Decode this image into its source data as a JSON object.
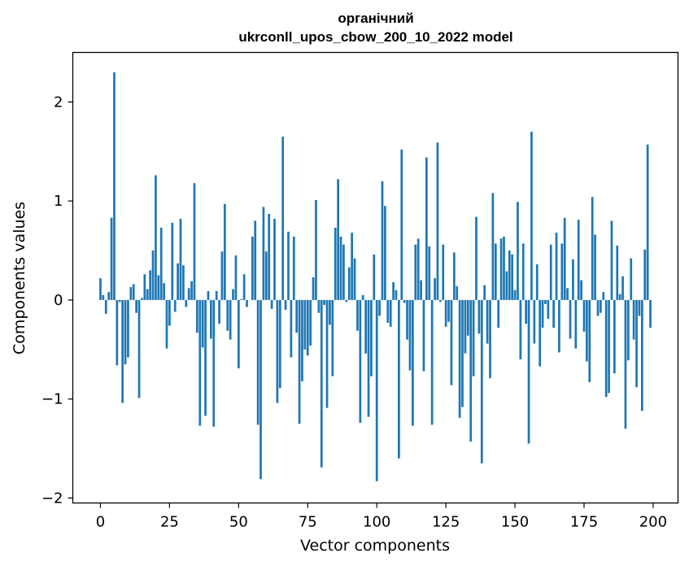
{
  "chart_data": {
    "type": "bar",
    "title_line1": "органічний",
    "title_line2": "ukrconll_upos_cbow_200_10_2022 model",
    "xlabel": "Vector components",
    "ylabel": "Components values",
    "xlim": [
      -10,
      209
    ],
    "ylim": [
      -2.05,
      2.5
    ],
    "xticks": [
      0,
      25,
      50,
      75,
      100,
      125,
      150,
      175,
      200
    ],
    "yticks": [
      -2,
      -1,
      0,
      1,
      2
    ],
    "ytick_labels": [
      "−2",
      "−1",
      "0",
      "1",
      "2"
    ],
    "grid": false,
    "bar_color": "#1f77b4",
    "x": [
      0,
      1,
      2,
      3,
      4,
      5,
      6,
      7,
      8,
      9,
      10,
      11,
      12,
      13,
      14,
      15,
      16,
      17,
      18,
      19,
      20,
      21,
      22,
      23,
      24,
      25,
      26,
      27,
      28,
      29,
      30,
      31,
      32,
      33,
      34,
      35,
      36,
      37,
      38,
      39,
      40,
      41,
      42,
      43,
      44,
      45,
      46,
      47,
      48,
      49,
      50,
      51,
      52,
      53,
      54,
      55,
      56,
      57,
      58,
      59,
      60,
      61,
      62,
      63,
      64,
      65,
      66,
      67,
      68,
      69,
      70,
      71,
      72,
      73,
      74,
      75,
      76,
      77,
      78,
      79,
      80,
      81,
      82,
      83,
      84,
      85,
      86,
      87,
      88,
      89,
      90,
      91,
      92,
      93,
      94,
      95,
      96,
      97,
      98,
      99,
      100,
      101,
      102,
      103,
      104,
      105,
      106,
      107,
      108,
      109,
      110,
      111,
      112,
      113,
      114,
      115,
      116,
      117,
      118,
      119,
      120,
      121,
      122,
      123,
      124,
      125,
      126,
      127,
      128,
      129,
      130,
      131,
      132,
      133,
      134,
      135,
      136,
      137,
      138,
      139,
      140,
      141,
      142,
      143,
      144,
      145,
      146,
      147,
      148,
      149,
      150,
      151,
      152,
      153,
      154,
      155,
      156,
      157,
      158,
      159,
      160,
      161,
      162,
      163,
      164,
      165,
      166,
      167,
      168,
      169,
      170,
      171,
      172,
      173,
      174,
      175,
      176,
      177,
      178,
      179,
      180,
      181,
      182,
      183,
      184,
      185,
      186,
      187,
      188,
      189,
      190,
      191,
      192,
      193,
      194,
      195,
      196,
      197,
      198,
      199
    ],
    "values": [
      0.22,
      0.05,
      -0.14,
      0.08,
      0.83,
      2.3,
      -0.66,
      -0.02,
      -1.04,
      -0.65,
      -0.58,
      0.13,
      0.16,
      -0.13,
      -0.99,
      0.02,
      0.26,
      0.11,
      0.3,
      0.5,
      1.26,
      0.25,
      0.73,
      0.17,
      -0.49,
      -0.26,
      0.78,
      -0.12,
      0.37,
      0.82,
      0.35,
      -0.07,
      0.12,
      0.19,
      1.18,
      -0.33,
      -1.27,
      -0.48,
      -1.17,
      0.09,
      -0.39,
      -1.28,
      0.09,
      -0.24,
      0.49,
      0.97,
      -0.31,
      -0.4,
      0.11,
      0.45,
      -0.69,
      0.01,
      0.26,
      -0.07,
      0.0,
      0.64,
      0.8,
      -1.26,
      -1.81,
      0.94,
      0.49,
      0.87,
      -0.09,
      0.82,
      -1.04,
      -0.89,
      1.65,
      -0.1,
      0.69,
      -0.58,
      0.64,
      -0.33,
      -1.25,
      -0.82,
      -0.5,
      -0.56,
      -0.46,
      0.23,
      1.01,
      -0.13,
      -1.69,
      -0.05,
      -1.09,
      -0.25,
      -0.77,
      0.73,
      1.22,
      0.64,
      0.56,
      -0.02,
      0.33,
      0.68,
      0.42,
      -0.31,
      -1.24,
      0.05,
      -0.54,
      -1.18,
      -0.77,
      0.46,
      -1.83,
      -0.16,
      1.2,
      0.95,
      -0.23,
      -0.27,
      0.18,
      0.1,
      -1.6,
      1.52,
      -0.03,
      -0.4,
      -0.71,
      -1.27,
      0.56,
      0.62,
      0.2,
      -0.72,
      1.44,
      0.54,
      -1.26,
      0.22,
      1.59,
      -0.02,
      0.56,
      -0.27,
      -0.22,
      -0.86,
      0.48,
      0.14,
      -1.19,
      -1.08,
      -0.54,
      -0.36,
      -1.43,
      -0.77,
      0.84,
      -0.34,
      -1.65,
      0.15,
      -0.44,
      -0.79,
      1.08,
      0.57,
      -0.28,
      0.62,
      0.64,
      0.29,
      0.5,
      0.46,
      0.1,
      0.99,
      -0.6,
      0.57,
      -0.24,
      -1.45,
      1.7,
      -0.44,
      0.36,
      -0.67,
      -0.28,
      -0.04,
      -0.19,
      0.56,
      -0.28,
      0.68,
      -0.53,
      0.57,
      0.83,
      0.12,
      -0.39,
      0.41,
      -0.49,
      0.81,
      0.2,
      -0.32,
      -0.62,
      -0.83,
      1.04,
      0.66,
      -0.16,
      -0.13,
      0.08,
      -0.98,
      -0.94,
      0.8,
      -0.74,
      0.55,
      0.06,
      0.24,
      -1.3,
      -0.61,
      0.42,
      -0.4,
      -0.88,
      -0.16,
      -1.12,
      0.51,
      1.57,
      -0.28
    ]
  }
}
